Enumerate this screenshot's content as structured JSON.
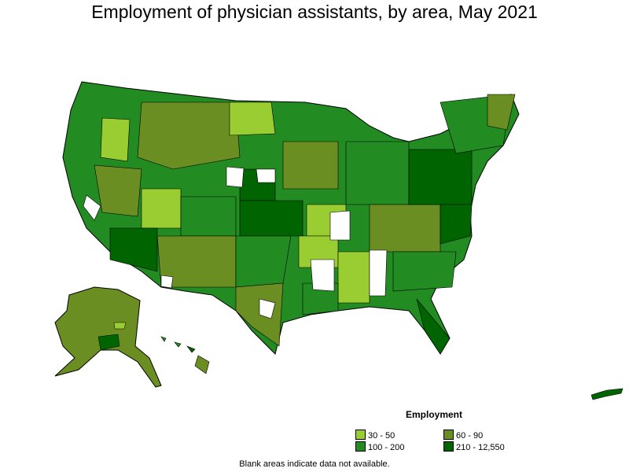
{
  "title": "Employment of physician assistants, by area, May 2021",
  "legend": {
    "title": "Employment",
    "items": [
      {
        "label": "30 - 50",
        "color": "#9acd32"
      },
      {
        "label": "60 - 90",
        "color": "#6b8e23"
      },
      {
        "label": "100 - 200",
        "color": "#228b22"
      },
      {
        "label": "210 - 12,550",
        "color": "#006400"
      }
    ]
  },
  "footnote": "Blank areas indicate data not available."
}
